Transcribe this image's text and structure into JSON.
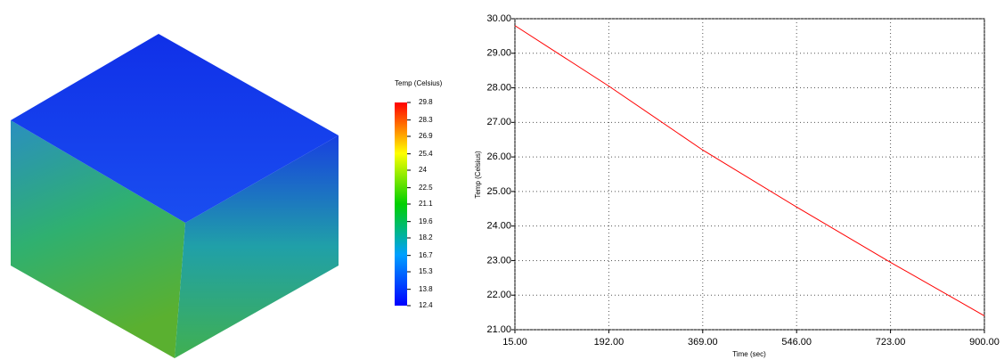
{
  "colorbar": {
    "title": "Temp (Celsius)",
    "lim": [
      12.4,
      29.8
    ],
    "ticks": [
      29.8,
      28.3,
      26.9,
      25.4,
      24,
      22.5,
      21.1,
      19.6,
      18.2,
      16.7,
      15.3,
      13.8,
      12.4
    ]
  },
  "chart_data": {
    "type": "line",
    "x_label": "Time (sec)",
    "y_label": "Temp (Celsius)",
    "x": [
      15,
      192,
      369,
      546,
      723,
      900
    ],
    "values": [
      29.8,
      28.05,
      26.2,
      24.55,
      22.95,
      21.4
    ],
    "color": "#ff0000",
    "xlim": [
      15,
      900
    ],
    "xticks": [
      {
        "value": 15,
        "label": "15.00"
      },
      {
        "value": 192,
        "label": "192.00"
      },
      {
        "value": 369,
        "label": "369.00"
      },
      {
        "value": 546,
        "label": "546.00"
      },
      {
        "value": 723,
        "label": "723.00"
      },
      {
        "value": 900,
        "label": "900.00"
      }
    ],
    "ylim": [
      21,
      30
    ],
    "yticks": [
      {
        "value": 21,
        "label": "21.00"
      },
      {
        "value": 22,
        "label": "22.00"
      },
      {
        "value": 23,
        "label": "23.00"
      },
      {
        "value": 24,
        "label": "24.00"
      },
      {
        "value": 25,
        "label": "25.00"
      },
      {
        "value": 26,
        "label": "26.00"
      },
      {
        "value": 27,
        "label": "27.00"
      },
      {
        "value": 28,
        "label": "28.00"
      },
      {
        "value": 29,
        "label": "29.00"
      },
      {
        "value": 30,
        "label": "30.00"
      }
    ],
    "grid": true
  }
}
